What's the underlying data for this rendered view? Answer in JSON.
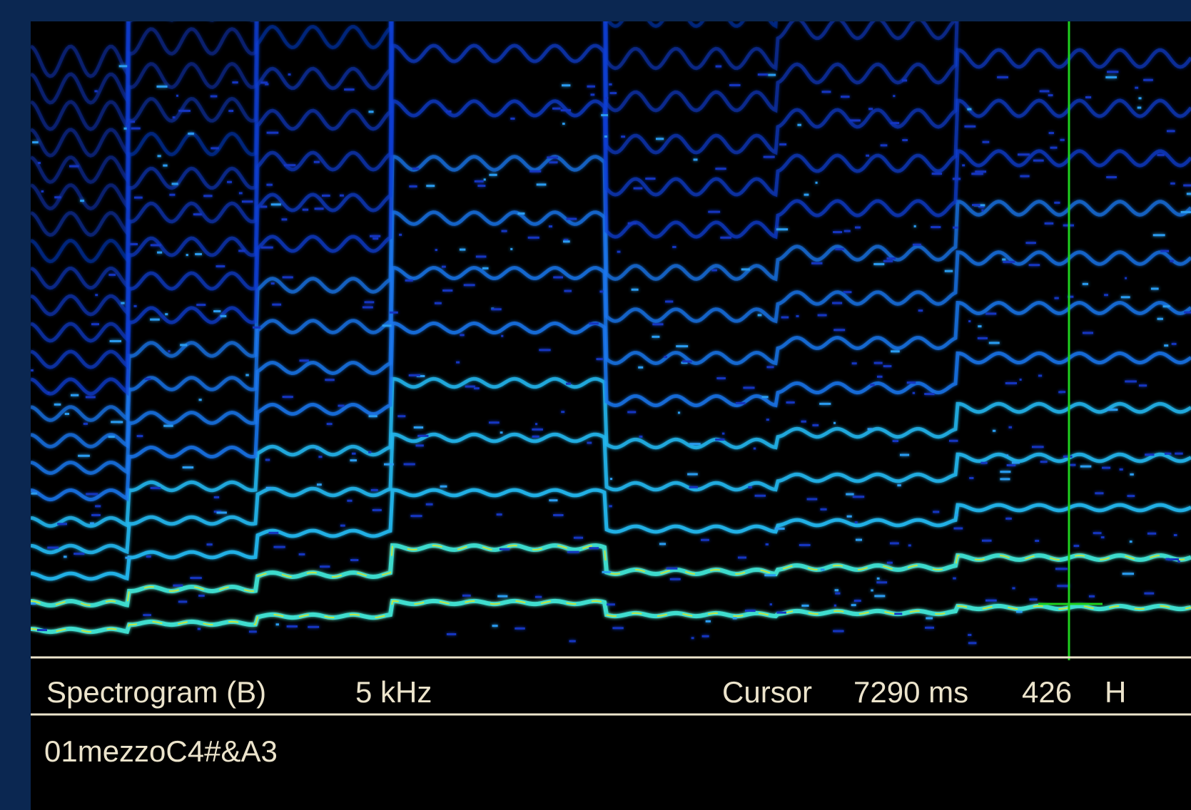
{
  "status": {
    "mode": "Spectrogram (B)",
    "range": "5 kHz",
    "cursor_label": "Cursor",
    "cursor_time": "7290 ms",
    "cursor_freq": "426",
    "cursor_unit": "H"
  },
  "filename": "01mezzoC4#&A3"
}
